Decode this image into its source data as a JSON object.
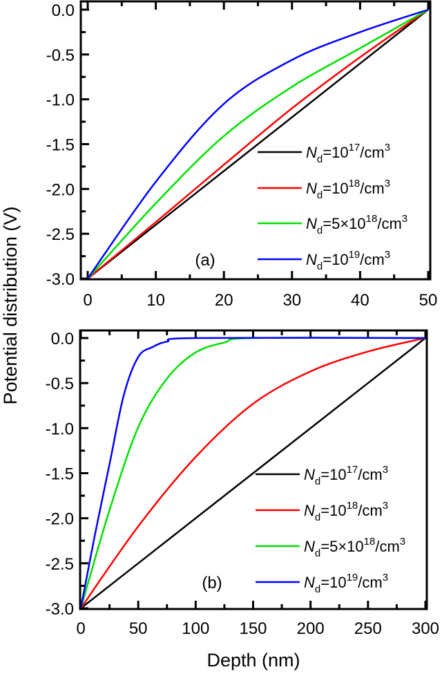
{
  "chart_data": [
    {
      "type": "line",
      "panel_label": "(a)",
      "xlabel": "",
      "ylabel": "Potential distribution (V)",
      "xlim": [
        0,
        50
      ],
      "ylim": [
        -3.0,
        0.0
      ],
      "xticks": [
        "0",
        "10",
        "20",
        "30",
        "40",
        "50"
      ],
      "xtick_values": [
        0,
        10,
        20,
        30,
        40,
        50
      ],
      "yticks": [
        "0.0",
        "-0.5",
        "-1.0",
        "-1.5",
        "-2.0",
        "-2.5",
        "-3.0"
      ],
      "ytick_values": [
        0,
        -0.5,
        -1,
        -1.5,
        -2,
        -2.5,
        -3
      ],
      "grid": false,
      "legend_position": "right",
      "series": [
        {
          "legend": {
            "n": "N",
            "sub": "d",
            "mid": "=10",
            "exp": "17",
            "unit": "/cm",
            "unit_exp": "3"
          },
          "color": "#000000",
          "x": [
            0,
            10,
            20,
            30,
            40,
            50
          ],
          "y": [
            -3.0,
            -2.4,
            -1.8,
            -1.2,
            -0.6,
            0.0
          ]
        },
        {
          "legend": {
            "n": "N",
            "sub": "d",
            "mid": "=10",
            "exp": "18",
            "unit": "/cm",
            "unit_exp": "3"
          },
          "color": "#ff0000",
          "x": [
            0,
            10,
            20,
            30,
            40,
            50
          ],
          "y": [
            -3.0,
            -2.37,
            -1.73,
            -1.1,
            -0.53,
            0.0
          ]
        },
        {
          "legend": {
            "n": "N",
            "sub": "d",
            "mid": "=5×10",
            "exp": "18",
            "unit": "/cm",
            "unit_exp": "3"
          },
          "color": "#00e000",
          "x": [
            0,
            10,
            20,
            30,
            40,
            50
          ],
          "y": [
            -3.0,
            -2.16,
            -1.41,
            -0.86,
            -0.43,
            0.0
          ]
        },
        {
          "legend": {
            "n": "N",
            "sub": "d",
            "mid": "=10",
            "exp": "19",
            "unit": "/cm",
            "unit_exp": "3"
          },
          "color": "#0000ff",
          "x": [
            0,
            10,
            20,
            30,
            40,
            50
          ],
          "y": [
            -3.0,
            -1.92,
            -1.05,
            -0.56,
            -0.25,
            0.0
          ]
        }
      ]
    },
    {
      "type": "line",
      "panel_label": "(b)",
      "xlabel": "Depth (nm)",
      "ylabel": "Potential distribution (V)",
      "xlim": [
        0,
        300
      ],
      "ylim": [
        -3.0,
        0.0
      ],
      "xticks": [
        "0",
        "50",
        "100",
        "150",
        "200",
        "250",
        "300"
      ],
      "xtick_values": [
        0,
        50,
        100,
        150,
        200,
        250,
        300
      ],
      "yticks": [
        "0.0",
        "-0.5",
        "-1.0",
        "-1.5",
        "-2.0",
        "-2.5",
        "-3.0"
      ],
      "ytick_values": [
        0,
        -0.5,
        -1,
        -1.5,
        -2,
        -2.5,
        -3
      ],
      "grid": false,
      "legend_position": "right",
      "series": [
        {
          "legend": {
            "n": "N",
            "sub": "d",
            "mid": "=10",
            "exp": "17",
            "unit": "/cm",
            "unit_exp": "3"
          },
          "color": "#000000",
          "x": [
            0,
            100,
            200,
            300
          ],
          "y": [
            -3.0,
            -2.0,
            -1.0,
            0.0
          ]
        },
        {
          "legend": {
            "n": "N",
            "sub": "d",
            "mid": "=10",
            "exp": "18",
            "unit": "/cm",
            "unit_exp": "3"
          },
          "color": "#ff0000",
          "x": [
            0,
            50,
            100,
            150,
            200,
            250,
            300
          ],
          "y": [
            -3.0,
            -2.09,
            -1.32,
            -0.73,
            -0.37,
            -0.15,
            0.0
          ]
        },
        {
          "legend": {
            "n": "N",
            "sub": "d",
            "mid": "=5×10",
            "exp": "18",
            "unit": "/cm",
            "unit_exp": "3"
          },
          "color": "#00e000",
          "x": [
            0,
            25,
            50,
            75,
            100,
            125,
            150,
            300
          ],
          "y": [
            -3.0,
            -1.91,
            -0.99,
            -0.45,
            -0.16,
            -0.05,
            0.0,
            0.0
          ]
        },
        {
          "legend": {
            "n": "N",
            "sub": "d",
            "mid": "=10",
            "exp": "19",
            "unit": "/cm",
            "unit_exp": "3"
          },
          "color": "#0000ff",
          "x": [
            0,
            12.5,
            25,
            37.5,
            50,
            62.5,
            75,
            100,
            300
          ],
          "y": [
            -3.0,
            -2.17,
            -1.4,
            -0.63,
            -0.21,
            -0.1,
            -0.04,
            0.0,
            0.0
          ]
        }
      ]
    }
  ]
}
